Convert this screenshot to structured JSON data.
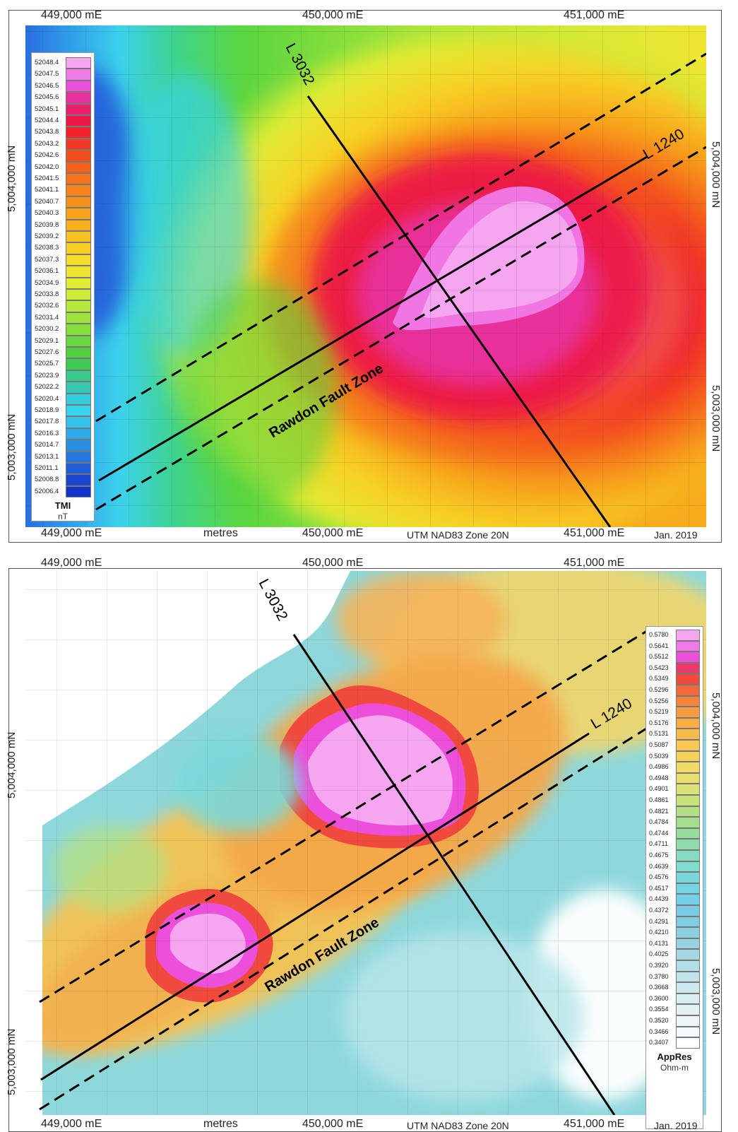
{
  "panels": [
    {
      "id": "tmi",
      "top_labels": [
        "449,000 mE",
        "450,000 mE",
        "451,000 mE"
      ],
      "bottom_labels": [
        "449,000 mE",
        "metres",
        "450,000 mE",
        "UTM NAD83 Zone 20N",
        "451,000 mE",
        "Jan. 2019"
      ],
      "left_labels": [
        "5,004,000 mN",
        "5,003,000 mN"
      ],
      "right_labels": [
        "5,004,000 mN",
        "5,003,000 mN"
      ],
      "line_labels": {
        "l3032": "L 3032",
        "l1240": "L 1240",
        "fault": "Rawdon Fault Zone"
      },
      "legend": {
        "title": "TMI",
        "unit": "nT",
        "values": [
          "52048.4",
          "52047.5",
          "52046.5",
          "52045.6",
          "52045.1",
          "52044.4",
          "52043.8",
          "52043.2",
          "52042.6",
          "52042.0",
          "52041.5",
          "52041.1",
          "52040.7",
          "52040.3",
          "52039.8",
          "52039.2",
          "52038.3",
          "52037.3",
          "52036.1",
          "52034.9",
          "52033.8",
          "52032.6",
          "52031.4",
          "52030.2",
          "52029.1",
          "52027.6",
          "52025.7",
          "52023.9",
          "52022.2",
          "52020.4",
          "52018.9",
          "52017.8",
          "52016.3",
          "52014.7",
          "52013.1",
          "52011.1",
          "52008.8",
          "52006.4"
        ],
        "colors": [
          "#f6a6f0",
          "#f07ae8",
          "#ec4fd9",
          "#e8309f",
          "#e81f6a",
          "#ec1746",
          "#f0232c",
          "#f23a22",
          "#f24f1e",
          "#f4611c",
          "#f5731b",
          "#f6831b",
          "#f6921c",
          "#f7a11d",
          "#f8b01e",
          "#f8c020",
          "#f8d024",
          "#f6de2a",
          "#f0e630",
          "#e2ec34",
          "#cdec38",
          "#b5e83a",
          "#9ee43c",
          "#84de3c",
          "#6ad83e",
          "#52d240",
          "#40cc52",
          "#38c88a",
          "#36c8b4",
          "#36cedc",
          "#38d4ee",
          "#34c2ec",
          "#2eaae8",
          "#2890e2",
          "#2476dc",
          "#1f5ed6",
          "#1a46d0",
          "#1232cc"
        ]
      }
    },
    {
      "id": "appres",
      "top_labels": [
        "449,000 mE",
        "450,000 mE",
        "451,000 mE"
      ],
      "bottom_labels": [
        "449,000 mE",
        "metres",
        "450,000 mE",
        "UTM NAD83 Zone 20N",
        "451,000 mE",
        "Jan. 2019"
      ],
      "left_labels": [
        "5,004,000 mN",
        "5,003,000 mN"
      ],
      "right_labels": [
        "5,004,000 mN",
        "5,003,000 mN"
      ],
      "line_labels": {
        "l3032": "L 3032",
        "l1240": "L 1240",
        "fault": "Rawdon Fault Zone"
      },
      "legend": {
        "title": "AppRes",
        "unit": "Ohm-m",
        "values": [
          "0.5780",
          "0.5641",
          "0.5512",
          "0.5423",
          "0.5349",
          "0.5296",
          "0.5256",
          "0.5219",
          "0.5176",
          "0.5131",
          "0.5087",
          "0.5039",
          "0.4986",
          "0.4948",
          "0.4901",
          "0.4861",
          "0.4821",
          "0.4784",
          "0.4744",
          "0.4711",
          "0.4675",
          "0.4639",
          "0.4576",
          "0.4517",
          "0.4439",
          "0.4372",
          "0.4291",
          "0.4210",
          "0.4131",
          "0.4025",
          "0.3920",
          "0.3780",
          "0.3668",
          "0.3600",
          "0.3554",
          "0.3520",
          "0.3466",
          "0.3407"
        ],
        "colors": [
          "#f6a6f0",
          "#f07ae8",
          "#ec4fd9",
          "#ee3a6a",
          "#f04a3e",
          "#f36a3a",
          "#f5843c",
          "#f79c40",
          "#f8ae44",
          "#f8bc4a",
          "#f8c852",
          "#f6d25c",
          "#f2da66",
          "#eade70",
          "#dce276",
          "#c8e27c",
          "#b4e084",
          "#a2de8c",
          "#96dc9c",
          "#8edcae",
          "#86dcc0",
          "#80dcce",
          "#7ad8da",
          "#76d4e4",
          "#74d0e8",
          "#78cce6",
          "#80cce2",
          "#8ad0e0",
          "#96d4e0",
          "#a4d8e2",
          "#b2dee6",
          "#c0e4ea",
          "#cceaee",
          "#d8eef2",
          "#e2f2f4",
          "#ecf6f8",
          "#f4fafb",
          "#ffffff"
        ]
      }
    }
  ]
}
